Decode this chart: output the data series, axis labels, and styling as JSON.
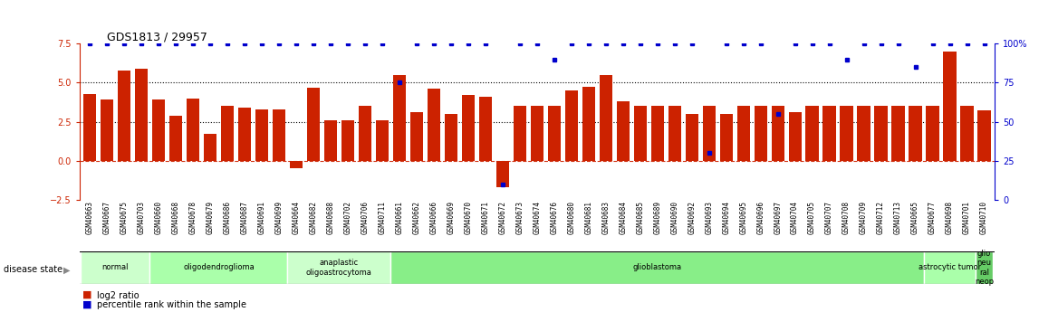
{
  "title": "GDS1813 / 29957",
  "samples": [
    "GSM40663",
    "GSM40667",
    "GSM40675",
    "GSM40703",
    "GSM40660",
    "GSM40668",
    "GSM40678",
    "GSM40679",
    "GSM40686",
    "GSM40687",
    "GSM40691",
    "GSM40699",
    "GSM40664",
    "GSM40682",
    "GSM40688",
    "GSM40702",
    "GSM40706",
    "GSM40711",
    "GSM40661",
    "GSM40662",
    "GSM40666",
    "GSM40669",
    "GSM40670",
    "GSM40671",
    "GSM40672",
    "GSM40673",
    "GSM40674",
    "GSM40676",
    "GSM40680",
    "GSM40681",
    "GSM40683",
    "GSM40684",
    "GSM40685",
    "GSM40689",
    "GSM40690",
    "GSM40692",
    "GSM40693",
    "GSM40694",
    "GSM40695",
    "GSM40696",
    "GSM40697",
    "GSM40704",
    "GSM40705",
    "GSM40707",
    "GSM40708",
    "GSM40709",
    "GSM40712",
    "GSM40713",
    "GSM40665",
    "GSM40677",
    "GSM40698",
    "GSM40701",
    "GSM40710"
  ],
  "log2_ratio": [
    4.3,
    3.9,
    5.8,
    5.9,
    3.9,
    2.9,
    4.0,
    1.7,
    3.5,
    3.4,
    3.3,
    3.3,
    -0.5,
    4.7,
    2.6,
    2.6,
    3.5,
    2.6,
    5.5,
    3.1,
    4.6,
    3.0,
    4.2,
    4.1,
    -1.7,
    3.5,
    3.5,
    3.5,
    4.5,
    4.75,
    5.5,
    3.8,
    3.5,
    3.5,
    3.5,
    3.0,
    3.5,
    3.0,
    3.5,
    3.5,
    3.5,
    3.1,
    3.5,
    3.5,
    3.5,
    3.5,
    3.5,
    3.5,
    3.5,
    3.5,
    7.0,
    3.5,
    3.2
  ],
  "percentile": [
    100,
    100,
    100,
    100,
    100,
    100,
    100,
    100,
    100,
    100,
    100,
    100,
    100,
    100,
    100,
    100,
    100,
    100,
    75,
    100,
    100,
    100,
    100,
    100,
    10,
    100,
    100,
    90,
    100,
    100,
    100,
    100,
    100,
    100,
    100,
    100,
    30,
    100,
    100,
    100,
    55,
    100,
    100,
    100,
    90,
    100,
    100,
    100,
    85,
    100,
    100,
    100,
    100
  ],
  "disease_groups": [
    {
      "label": "normal",
      "start": 0,
      "end": 4,
      "color": "#ccffcc"
    },
    {
      "label": "oligodendroglioma",
      "start": 4,
      "end": 12,
      "color": "#aaffaa"
    },
    {
      "label": "anaplastic\noligoastrocytoma",
      "start": 12,
      "end": 18,
      "color": "#ccffcc"
    },
    {
      "label": "glioblastoma",
      "start": 18,
      "end": 49,
      "color": "#88ee88"
    },
    {
      "label": "astrocytic tumor",
      "start": 49,
      "end": 52,
      "color": "#aaffaa"
    },
    {
      "label": "glio\nneu\nral\nneop",
      "start": 52,
      "end": 53,
      "color": "#66cc66"
    }
  ],
  "bar_color": "#cc2200",
  "dot_color": "#0000cc",
  "background_color": "#ffffff"
}
